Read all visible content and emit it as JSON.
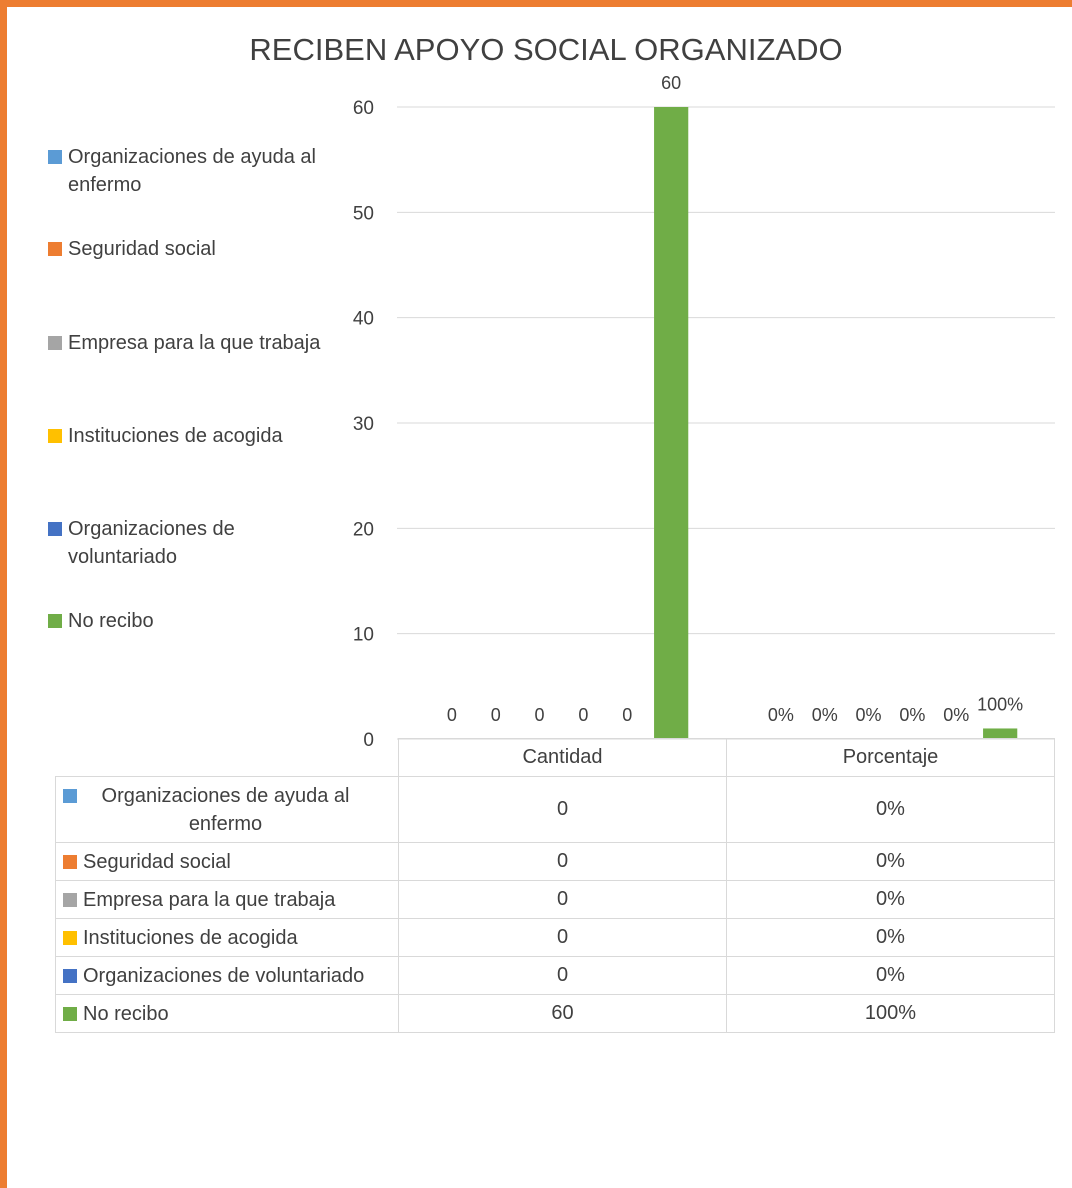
{
  "chart_data": {
    "type": "bar",
    "title": "RECIBEN APOYO SOCIAL ORGANIZADO",
    "categories": [
      "Cantidad",
      "Porcentaje"
    ],
    "ylim": [
      0,
      60
    ],
    "yticks": [
      0,
      10,
      20,
      30,
      40,
      50,
      60
    ],
    "grid": true,
    "legend_position": "left",
    "series": [
      {
        "name": "Organizaciones de ayuda al enfermo",
        "color": "#5B9BD5",
        "values": [
          0,
          0
        ],
        "labels": [
          "0",
          "0%"
        ]
      },
      {
        "name": "Seguridad social",
        "color": "#ED7D31",
        "values": [
          0,
          0
        ],
        "labels": [
          "0",
          "0%"
        ]
      },
      {
        "name": "Empresa para la que trabaja",
        "color": "#A5A5A5",
        "values": [
          0,
          0
        ],
        "labels": [
          "0",
          "0%"
        ]
      },
      {
        "name": "Instituciones de acogida",
        "color": "#FFC000",
        "values": [
          0,
          0
        ],
        "labels": [
          "0",
          "0%"
        ]
      },
      {
        "name": "Organizaciones de voluntariado",
        "color": "#4472C4",
        "values": [
          0,
          0
        ],
        "labels": [
          "0",
          "0%"
        ]
      },
      {
        "name": "No recibo",
        "color": "#70AD47",
        "values": [
          60,
          1
        ],
        "labels": [
          "60",
          "100%"
        ]
      }
    ],
    "data_table": {
      "headers": [
        "Cantidad",
        "Porcentaje"
      ],
      "rows": [
        {
          "label": "Organizaciones de ayuda al enfermo",
          "cells": [
            "0",
            "0%"
          ]
        },
        {
          "label": "Seguridad social",
          "cells": [
            "0",
            "0%"
          ]
        },
        {
          "label": "Empresa para la que trabaja",
          "cells": [
            "0",
            "0%"
          ]
        },
        {
          "label": "Instituciones de acogida",
          "cells": [
            "0",
            "0%"
          ]
        },
        {
          "label": "Organizaciones de voluntariado",
          "cells": [
            "0",
            "0%"
          ]
        },
        {
          "label": "No recibo",
          "cells": [
            "60",
            "100%"
          ]
        }
      ]
    }
  },
  "frame": {
    "border_color": "#ED7D31"
  }
}
